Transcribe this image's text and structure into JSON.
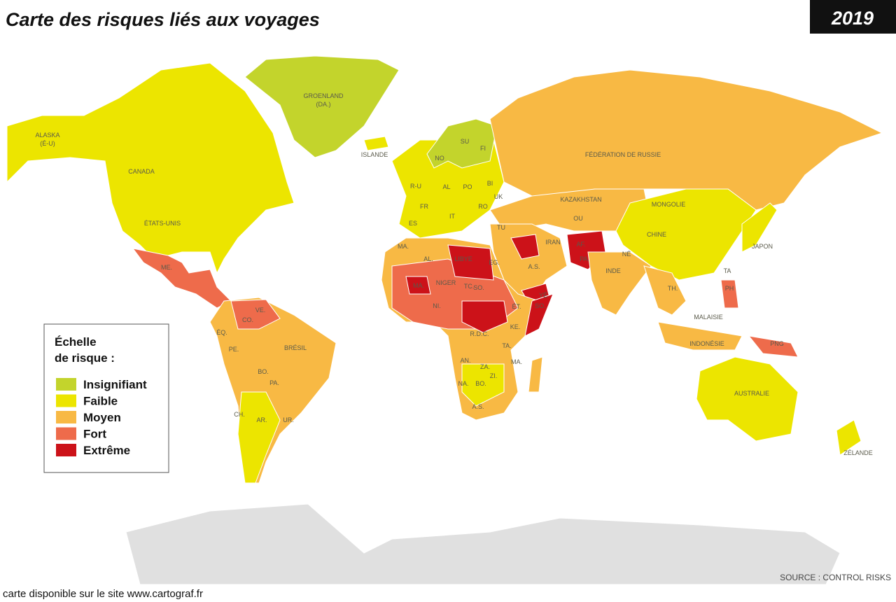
{
  "title": "Carte des risques liés aux voyages",
  "year": "2019",
  "legend": {
    "title": [
      "Échelle",
      "de risque :"
    ],
    "items": [
      {
        "name": "Insignifiant",
        "color": "#c3d42c"
      },
      {
        "name": "Faible",
        "color": "#ece500"
      },
      {
        "name": "Moyen",
        "color": "#f8b944"
      },
      {
        "name": "Fort",
        "color": "#ee6b4b"
      },
      {
        "name": "Extrême",
        "color": "#cc1219"
      }
    ]
  },
  "labels": [
    "GROENLAND",
    "(DA.)",
    "ALASKA",
    "(É-U)",
    "CANADA",
    "ÉTATS-UNIS",
    "ISLANDE",
    "SU",
    "NO",
    "FI",
    "R-U",
    "FR",
    "ES",
    "AL",
    "PO",
    "BI",
    "UK",
    "RO",
    "IT",
    "TU",
    "FÉDÉRATION DE RUSSIE",
    "KAZAKHSTAN",
    "MONGOLIE",
    "OU",
    "CHINE",
    "JAPON",
    "IRAN",
    "AF.",
    "PA.",
    "NÉ",
    "INDE",
    "TA",
    "PH",
    "TH.",
    "MALAISIE",
    "INDONÉSIE",
    "PNG",
    "AUSTRALIE",
    "ZÉLANDE",
    "ME.",
    "VE.",
    "CO.",
    "ÉQ.",
    "PE.",
    "BRÉSIL",
    "BO.",
    "PA.",
    "CH.",
    "AR.",
    "UR.",
    "MA.",
    "AL.",
    "LIBYE",
    "EG.",
    "MA.",
    "NIGER",
    "TC.",
    "SO.",
    "NI.",
    "ÉT.",
    "SO.",
    "YÉ",
    "A.S.",
    "R.D.C.",
    "KE.",
    "TA.",
    "AN.",
    "ZA.",
    "MA.",
    "NA.",
    "BO.",
    "ZI.",
    "A.S."
  ],
  "source": "SOURCE : CONTROL RISKS",
  "footer": "carte disponible sur le site www.cartograf.fr"
}
